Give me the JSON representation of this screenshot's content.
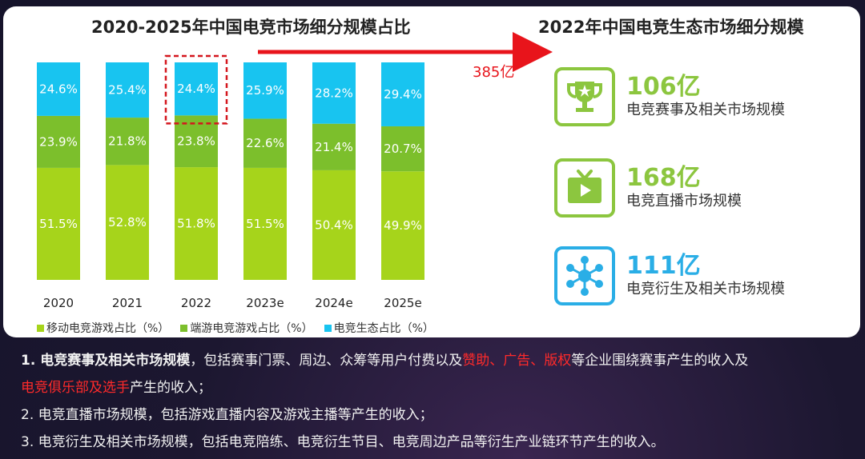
{
  "left_title": "2020-2025年中国电竞市场细分规模占比",
  "right_title": "2022年中国电竞生态市场细分规模",
  "arrow_value": "385亿",
  "chart_data": {
    "type": "bar",
    "stacked": true,
    "percent_stacked": true,
    "categories": [
      "2020",
      "2021",
      "2022",
      "2023e",
      "2024e",
      "2025e"
    ],
    "series": [
      {
        "name": "移动电竞游戏占比（%）",
        "color": "#a6d41b",
        "values": [
          51.5,
          52.8,
          51.8,
          51.5,
          50.4,
          49.9
        ]
      },
      {
        "name": "端游电竞游戏占比（%）",
        "color": "#7cbf2c",
        "values": [
          23.9,
          21.8,
          23.8,
          22.6,
          21.4,
          20.7
        ]
      },
      {
        "name": "电竞生态占比（%）",
        "color": "#18c4f0",
        "values": [
          24.6,
          25.4,
          24.4,
          25.9,
          28.2,
          29.4
        ]
      }
    ],
    "data_labels": [
      [
        "51.5%",
        "52.8%",
        "51.8%",
        "51.5%",
        "50.4%",
        "49.9%"
      ],
      [
        "23.9%",
        "21.8%",
        "23.8%",
        "22.6%",
        "21.4%",
        "20.7%"
      ],
      [
        "24.6%",
        "25.4%",
        "24.4%",
        "25.9%",
        "28.2%",
        "29.4%"
      ]
    ],
    "highlight_category": "2022",
    "legend_position": "bottom-left",
    "grid": false
  },
  "ecosystem": [
    {
      "value": "106亿",
      "label": "电竞赛事及相关市场规模",
      "icon": "trophy-icon",
      "color": "#8cc63f"
    },
    {
      "value": "168亿",
      "label": "电竞直播市场规模",
      "icon": "tv-icon",
      "color": "#8cc63f"
    },
    {
      "value": "111亿",
      "label": "电竞衍生及相关市场规模",
      "icon": "network-icon",
      "color": "#2aaee6"
    }
  ],
  "notes": {
    "n1_prefix": "1. ",
    "n1_bold": "电竞赛事及相关市场规模",
    "n1_a": "，包括赛事门票、周边、众筹等用户付费以及",
    "n1_r1": "赞助",
    "n1_s1": "、",
    "n1_r2": "广告",
    "n1_s2": "、",
    "n1_r3": "版权",
    "n1_b": "等企业围绕赛事产生的收入及",
    "n1_r4": "电竞俱乐部及选手",
    "n1_c": "产生的收入；",
    "n2": "2. 电竞直播市场规模，包括游戏直播内容及游戏主播等产生的收入；",
    "n3": "3. 电竞衍生及相关市场规模，包括电竞陪练、电竞衍生节目、电竞周边产品等衍生产业链环节产生的收入。"
  }
}
